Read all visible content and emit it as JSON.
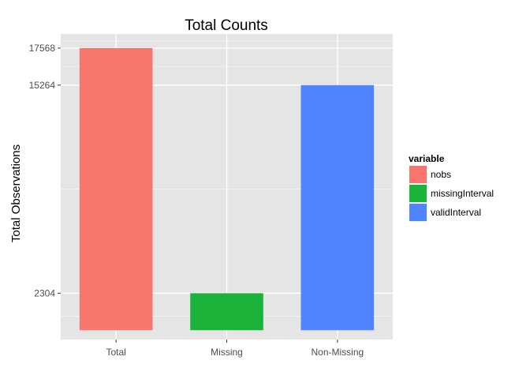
{
  "chart_data": {
    "type": "bar",
    "title": "Total Counts",
    "xlabel": "",
    "ylabel": "Total Observations",
    "categories": [
      "Total",
      "Missing",
      "Non-Missing"
    ],
    "values": [
      17568,
      2304,
      15264
    ],
    "bar_series": [
      "nobs",
      "missingInterval",
      "validInterval"
    ],
    "yticks": [
      2304,
      15264,
      17568
    ],
    "ylim": [
      -580,
      18450
    ],
    "grid": true,
    "legend": {
      "title": "variable",
      "position": "right",
      "entries": [
        {
          "name": "nobs",
          "color": "#F8766D"
        },
        {
          "name": "missingInterval",
          "color": "#1CB33B"
        },
        {
          "name": "validInterval",
          "color": "#5085FF"
        }
      ]
    },
    "colors": {
      "panel": "#E5E5E5",
      "grid": "#FFFFFF",
      "nobs": "#F8766D",
      "missingInterval": "#1CB33B",
      "validInterval": "#5085FF"
    }
  }
}
